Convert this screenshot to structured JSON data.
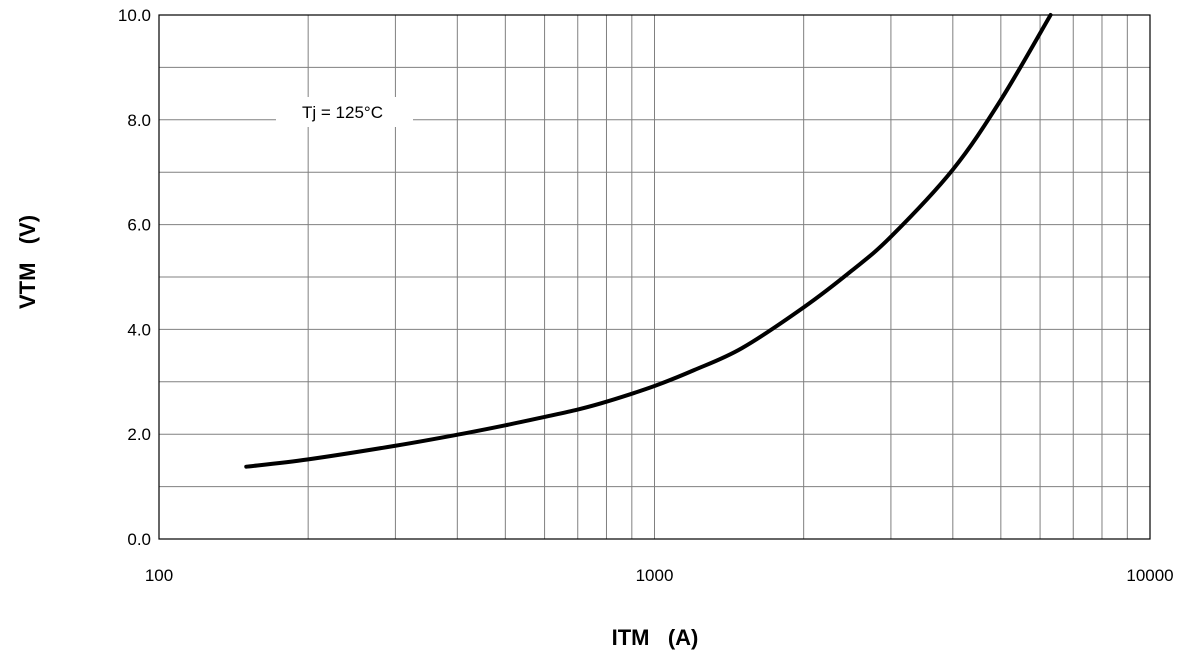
{
  "chart_data": {
    "type": "line",
    "title": "",
    "xlabel": "ITM   (A)",
    "ylabel": "VTM   (V)",
    "x_scale": "log",
    "xlim": [
      100,
      10000
    ],
    "ylim": [
      0,
      10
    ],
    "x_tick_labels": [
      "100",
      "1000",
      "10000"
    ],
    "y_tick_labels": [
      "0.0",
      "2.0",
      "4.0",
      "6.0",
      "8.0",
      "10.0"
    ],
    "grid": true,
    "annotation": "Tj = 125°C",
    "series": [
      {
        "x": [
          150,
          200,
          300,
          400,
          500,
          600,
          700,
          800,
          1000,
          1200,
          1500,
          2000,
          2500,
          3000,
          4000,
          5000,
          6300
        ],
        "values": [
          1.38,
          1.52,
          1.78,
          1.99,
          2.17,
          2.33,
          2.47,
          2.62,
          2.92,
          3.22,
          3.64,
          4.42,
          5.12,
          5.77,
          7.05,
          8.38,
          10.0
        ]
      }
    ]
  }
}
